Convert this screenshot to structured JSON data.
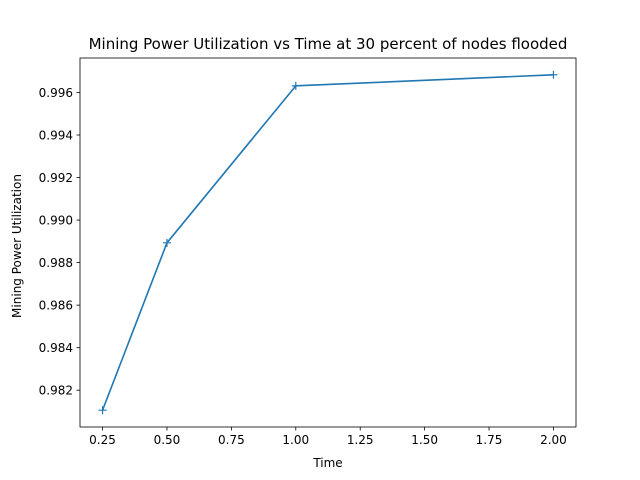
{
  "chart_data": {
    "type": "line",
    "title": "Mining Power Utilization vs Time at 30 percent of nodes flooded",
    "xlabel": "Time",
    "ylabel": "Mining Power Utilization",
    "x": [
      0.25,
      0.5,
      1.0,
      2.0
    ],
    "series": [
      {
        "name": "Mining Power Utilization",
        "values": [
          0.98106,
          0.98893,
          0.99631,
          0.99683
        ],
        "color": "#1f77b4",
        "marker": "+"
      }
    ],
    "xlim": [
      0.1625,
      2.0875
    ],
    "ylim": [
      0.98027,
      0.99762
    ],
    "xticks": [
      0.25,
      0.5,
      0.75,
      1.0,
      1.25,
      1.5,
      1.75,
      2.0
    ],
    "xtick_labels": [
      "0.25",
      "0.50",
      "0.75",
      "1.00",
      "1.25",
      "1.50",
      "1.75",
      "2.00"
    ],
    "yticks": [
      0.982,
      0.984,
      0.986,
      0.988,
      0.99,
      0.992,
      0.994,
      0.996
    ],
    "ytick_labels": [
      "0.982",
      "0.984",
      "0.986",
      "0.988",
      "0.990",
      "0.992",
      "0.994",
      "0.996"
    ],
    "grid": false,
    "legend": "none"
  }
}
